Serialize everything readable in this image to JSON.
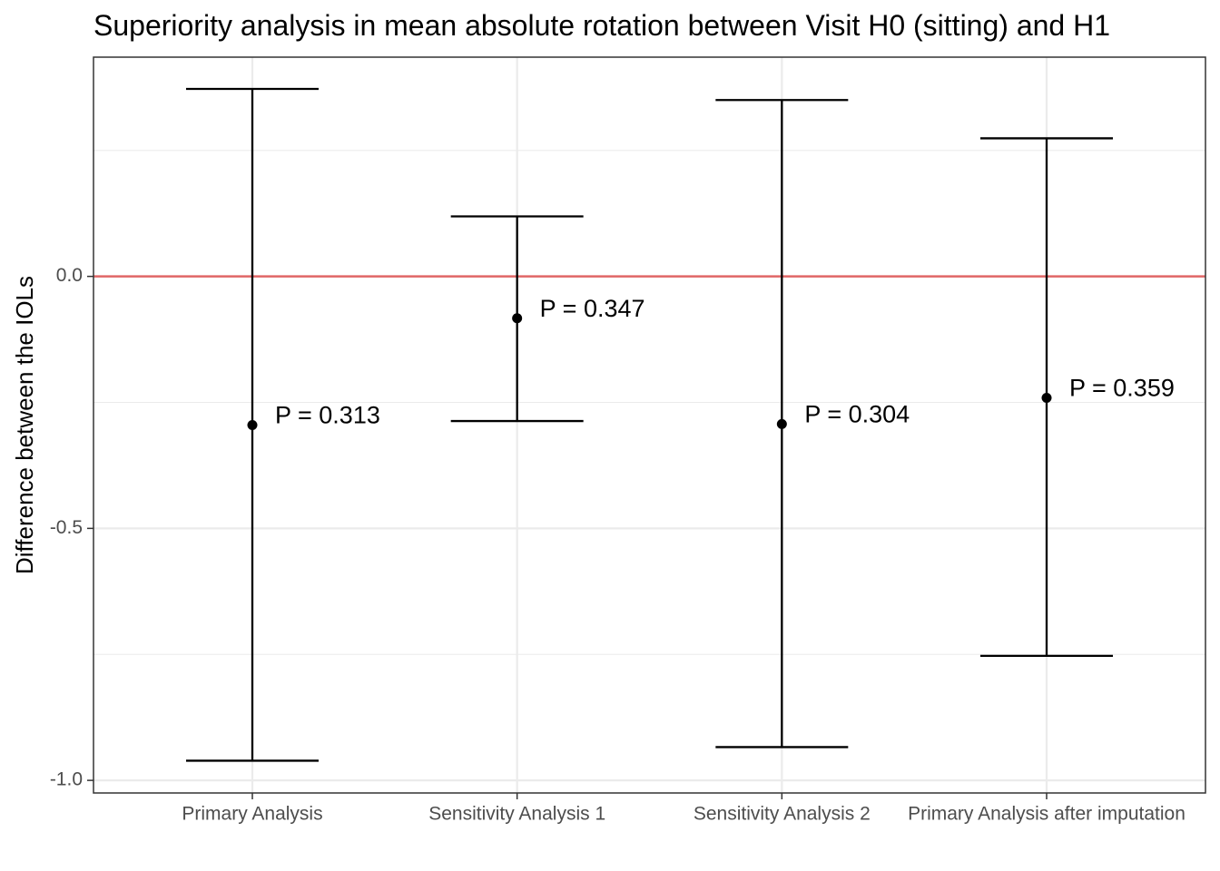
{
  "chart_data": {
    "type": "errorbar",
    "title": "Superiority analysis in mean absolute rotation between Visit H0 (sitting) and H1",
    "xlabel": "",
    "ylabel": "Difference between the IOLs",
    "ylim": [
      -1.025,
      0.435
    ],
    "yticks": [
      -1.0,
      -0.5,
      0.0
    ],
    "ytick_labels": [
      "-1.0",
      "-0.5",
      "0.0"
    ],
    "grid": true,
    "reference_line": {
      "y": 0.0,
      "color": "#e06666"
    },
    "categories": [
      "Primary Analysis",
      "Sensitivity Analysis 1",
      "Sensitivity Analysis 2",
      "Primary Analysis after imputation"
    ],
    "estimates": [
      -0.295,
      -0.083,
      -0.293,
      -0.241
    ],
    "lower": [
      -0.961,
      -0.287,
      -0.934,
      -0.753
    ],
    "upper": [
      0.372,
      0.119,
      0.35,
      0.274
    ],
    "p_labels": [
      "P = 0.313",
      "P = 0.347",
      "P = 0.304",
      "P = 0.359"
    ],
    "colors": {
      "panel_border": "#333333",
      "grid": "#ebebeb",
      "mark": "#000000",
      "reference": "#e06666"
    }
  }
}
